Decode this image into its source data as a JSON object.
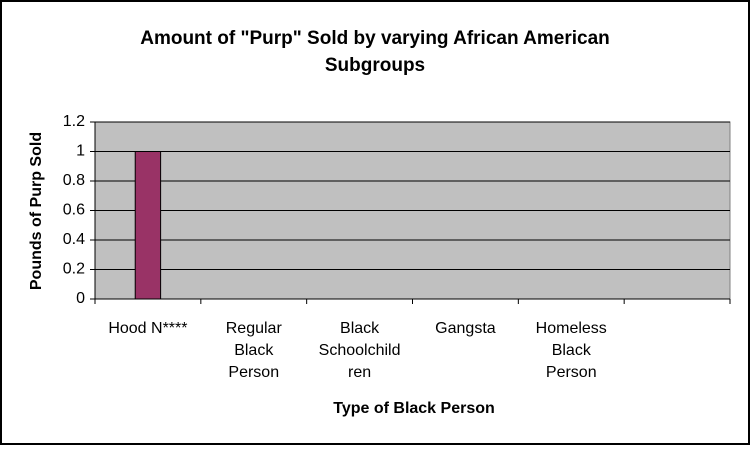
{
  "chart_data": {
    "type": "bar",
    "title": [
      "Amount of \"Purp\" Sold by varying African American",
      "Subgroups"
    ],
    "y_label": "Pounds of Purp Sold",
    "x_label": "Type of Black Person",
    "categories": [
      [
        "Hood N****"
      ],
      [
        "Regular",
        "Black",
        "Person"
      ],
      [
        "Black",
        "Schoolchild",
        "ren"
      ],
      [
        "Gangsta"
      ],
      [
        "Homeless",
        "Black",
        "Person"
      ],
      null
    ],
    "values": [
      1,
      0,
      0,
      0,
      0,
      null
    ],
    "color": "#993366",
    "ylim": [
      0,
      1.2
    ],
    "yticks": [
      0,
      0.2,
      0.4,
      0.6,
      0.8,
      1,
      1.2
    ],
    "grid": true
  }
}
